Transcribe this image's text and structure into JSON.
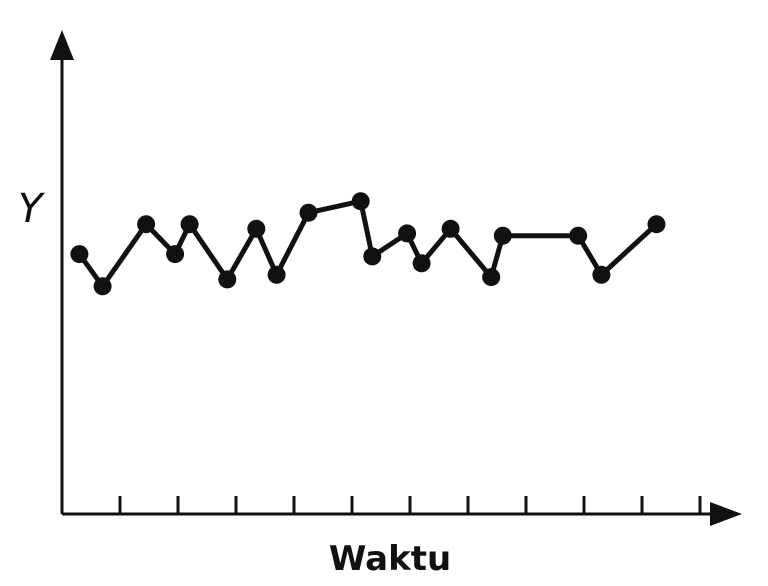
{
  "chart_data": {
    "type": "line",
    "xlabel": "Waktu",
    "ylabel": "Y",
    "grid": false,
    "legend": "none",
    "xlim": [
      0,
      11.5
    ],
    "ylim": [
      0,
      10
    ],
    "x": [
      0.3,
      0.7,
      1.45,
      1.95,
      2.2,
      2.85,
      3.35,
      3.7,
      4.25,
      5.15,
      5.35,
      5.95,
      6.2,
      6.7,
      7.4,
      7.6,
      8.9,
      9.3,
      10.25
    ],
    "y": [
      5.65,
      4.95,
      6.3,
      5.65,
      6.3,
      5.1,
      6.2,
      5.2,
      6.55,
      6.8,
      5.6,
      6.1,
      5.45,
      6.2,
      5.15,
      6.05,
      6.05,
      5.2,
      6.3
    ],
    "ticks": [
      1,
      2,
      3,
      4,
      5,
      6,
      7,
      8,
      9,
      10,
      11
    ],
    "colors": {
      "line": "#111111",
      "axis": "#111111",
      "background": "#ffffff"
    }
  }
}
